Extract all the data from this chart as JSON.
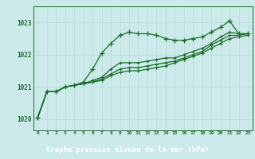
{
  "title": "Graphe pression niveau de la mer (hPa)",
  "bg_color": "#cceaea",
  "grid_color": "#aadddd",
  "line_color": "#1a6b2a",
  "footer_bg": "#2a6030",
  "footer_text": "#ffffff",
  "x_labels": [
    "0",
    "1",
    "2",
    "3",
    "4",
    "5",
    "6",
    "7",
    "8",
    "9",
    "10",
    "11",
    "12",
    "13",
    "14",
    "15",
    "16",
    "17",
    "18",
    "19",
    "20",
    "21",
    "22",
    "23"
  ],
  "ylim": [
    1019.65,
    1023.5
  ],
  "yticks": [
    1020,
    1021,
    1022,
    1023
  ],
  "series": [
    [
      1020.05,
      1020.85,
      1020.85,
      1021.0,
      1021.05,
      1021.15,
      1021.55,
      1022.05,
      1022.35,
      1022.6,
      1022.7,
      1022.65,
      1022.65,
      1022.6,
      1022.5,
      1022.45,
      1022.45,
      1022.5,
      1022.55,
      1022.7,
      1022.85,
      1023.05,
      1022.65,
      1022.65
    ],
    [
      1020.05,
      1020.85,
      1020.85,
      1021.0,
      1021.05,
      1021.1,
      1021.2,
      1021.3,
      1021.55,
      1021.75,
      1021.75,
      1021.75,
      1021.8,
      1021.85,
      1021.9,
      1021.9,
      1022.0,
      1022.1,
      1022.2,
      1022.35,
      1022.55,
      1022.7,
      1022.65,
      1022.65
    ],
    [
      1020.05,
      1020.85,
      1020.85,
      1021.0,
      1021.05,
      1021.1,
      1021.15,
      1021.25,
      1021.4,
      1021.55,
      1021.6,
      1021.6,
      1021.65,
      1021.7,
      1021.75,
      1021.8,
      1021.9,
      1022.0,
      1022.1,
      1022.3,
      1022.45,
      1022.6,
      1022.6,
      1022.65
    ],
    [
      1020.05,
      1020.85,
      1020.85,
      1021.0,
      1021.05,
      1021.1,
      1021.15,
      1021.2,
      1021.35,
      1021.45,
      1021.5,
      1021.5,
      1021.55,
      1021.6,
      1021.65,
      1021.75,
      1021.85,
      1021.95,
      1022.05,
      1022.2,
      1022.35,
      1022.5,
      1022.55,
      1022.6
    ]
  ]
}
